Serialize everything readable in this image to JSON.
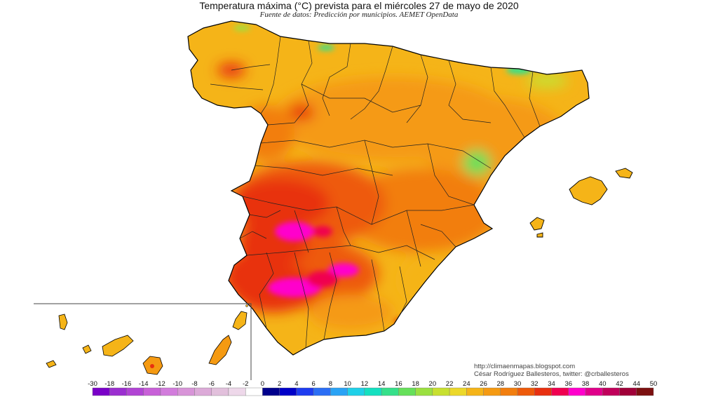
{
  "title": "Temperatura máxima (°C) prevista para el miércoles 27 de mayo de 2020",
  "subtitle": "Fuente de datos: Predicción por municipios. AEMET OpenData",
  "credits": {
    "line1": "http://climaenmapas.blogspot.com",
    "line2": "César Rodríguez Ballesteros, twitter: @crballesteros"
  },
  "legend": {
    "ticks": [
      "-30",
      "-18",
      "-16",
      "-14",
      "-12",
      "-10",
      "-8",
      "-6",
      "-4",
      "-2",
      "0",
      "2",
      "4",
      "6",
      "8",
      "10",
      "12",
      "14",
      "16",
      "18",
      "20",
      "22",
      "24",
      "26",
      "28",
      "30",
      "32",
      "34",
      "36",
      "38",
      "40",
      "42",
      "44",
      "50"
    ],
    "colors": [
      "#7a00c8",
      "#9b2fd0",
      "#b144d4",
      "#c860d8",
      "#d27cdc",
      "#d894d8",
      "#dcaad8",
      "#e2c0dc",
      "#eed8ea",
      "#ffffff",
      "#00008c",
      "#0000c8",
      "#1e3cf0",
      "#2b6ef5",
      "#2aa3f5",
      "#1fd0e8",
      "#14e0c0",
      "#35e08a",
      "#66e05a",
      "#9be040",
      "#c8e030",
      "#ecd82a",
      "#f5b418",
      "#f59a12",
      "#f27e0e",
      "#ee5a0a",
      "#e83010",
      "#f00050",
      "#ff00cc",
      "#e0008a",
      "#c0005a",
      "#a00038",
      "#7c1010"
    ]
  },
  "colors": {
    "sea": "#ffffff",
    "border": "#000000",
    "inset_frame": "#444444"
  }
}
